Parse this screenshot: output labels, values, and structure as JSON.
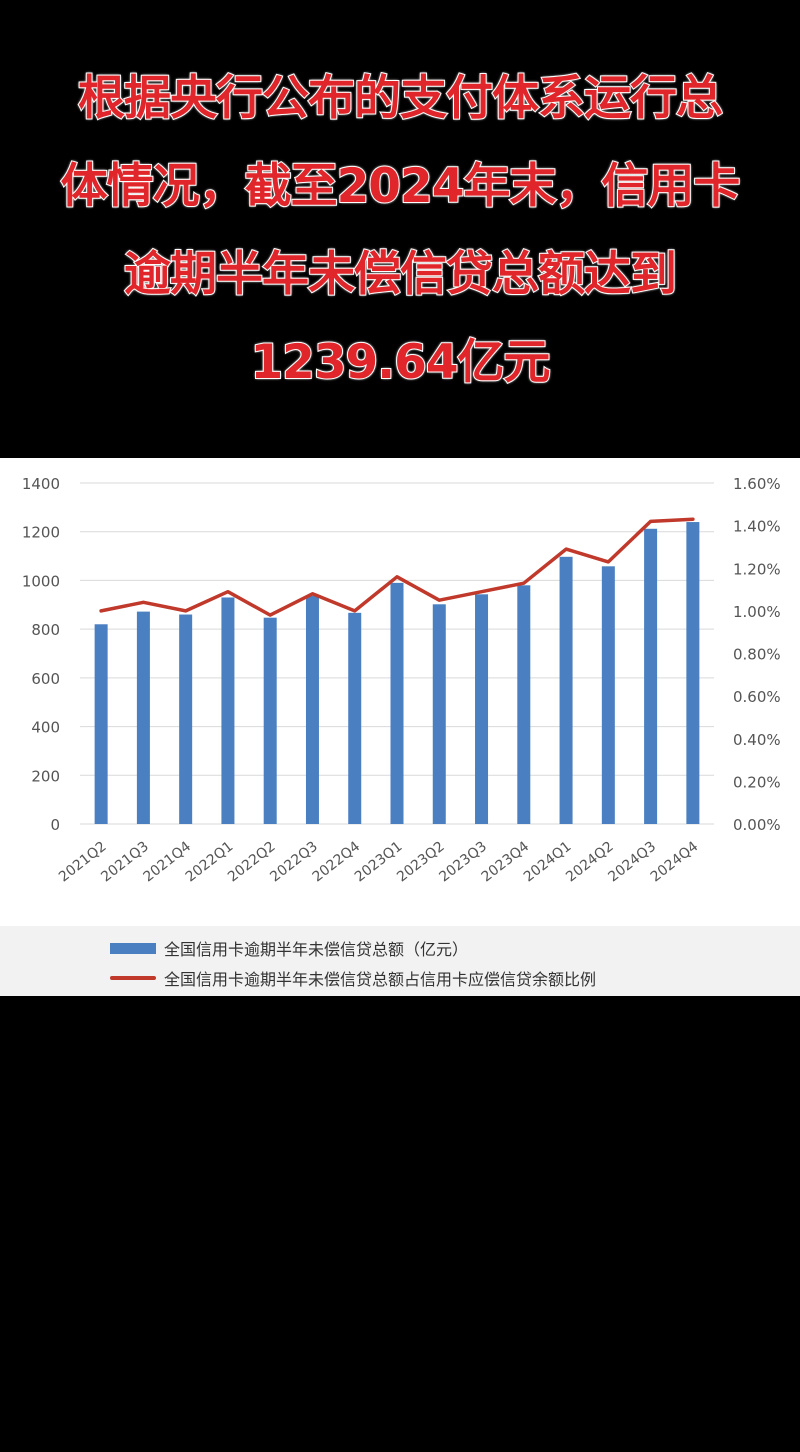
{
  "headline": {
    "lines": [
      "根据央行公布的支付体系运行总",
      "体情况，截至2024年末，信用卡",
      "逾期半年未偿信贷总额达到",
      "1239.64亿元"
    ]
  },
  "colors": {
    "headline_text": "#e0262a",
    "headline_outline": "#ffffff",
    "bar": "#4a7fc1",
    "line": "#c0392b",
    "grid": "#d9d9d9",
    "legend_bg": "#f2f2f2"
  },
  "chart_data": {
    "type": "bar",
    "categories": [
      "2021Q2",
      "2021Q3",
      "2021Q4",
      "2022Q1",
      "2022Q2",
      "2022Q3",
      "2022Q4",
      "2023Q1",
      "2023Q2",
      "2023Q3",
      "2023Q4",
      "2024Q1",
      "2024Q2",
      "2024Q3",
      "2024Q4"
    ],
    "series": [
      {
        "name": "全国信用卡逾期半年未偿信贷总额（亿元）",
        "type": "bar",
        "axis": "left",
        "values": [
          820,
          872,
          860,
          930,
          847,
          937,
          867,
          990,
          902,
          943,
          980,
          1097,
          1058,
          1212,
          1239.64
        ]
      },
      {
        "name": "全国信用卡逾期半年未偿信贷总额占信用卡应偿信贷余额比例",
        "type": "line",
        "axis": "right",
        "values": [
          1.0,
          1.04,
          1.0,
          1.09,
          0.98,
          1.08,
          1.0,
          1.16,
          1.05,
          1.09,
          1.13,
          1.29,
          1.23,
          1.42,
          1.43
        ]
      }
    ],
    "ylim_left": [
      0,
      1400
    ],
    "yticks_left": [
      "0",
      "200",
      "400",
      "600",
      "800",
      "1000",
      "1200",
      "1400"
    ],
    "ylim_right": [
      0,
      1.6
    ],
    "yticks_right": [
      "0.00%",
      "0.20%",
      "0.40%",
      "0.60%",
      "0.80%",
      "1.00%",
      "1.20%",
      "1.40%",
      "1.60%"
    ],
    "grid": true,
    "legend": "bottom"
  }
}
